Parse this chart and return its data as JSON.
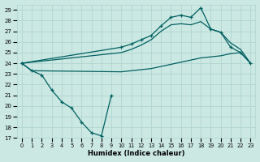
{
  "xlabel": "Humidex (Indice chaleur)",
  "bg_color": "#cbe8e3",
  "grid_color": "#b0d4cf",
  "line_color": "#006060",
  "xlim": [
    -0.5,
    23.5
  ],
  "ylim": [
    17,
    29.5
  ],
  "xticks": [
    0,
    1,
    2,
    3,
    4,
    5,
    6,
    7,
    8,
    9,
    10,
    11,
    12,
    13,
    14,
    15,
    16,
    17,
    18,
    19,
    20,
    21,
    22,
    23
  ],
  "yticks": [
    17,
    18,
    19,
    20,
    21,
    22,
    23,
    24,
    25,
    26,
    27,
    28,
    29
  ],
  "line1_x": [
    0,
    1,
    2,
    3,
    4,
    5,
    6,
    7,
    8,
    9
  ],
  "line1_y": [
    24.0,
    23.3,
    22.9,
    21.5,
    20.4,
    19.8,
    18.5,
    17.5,
    17.2,
    21.0
  ],
  "line2_x": [
    0,
    1,
    10,
    11,
    12,
    13,
    14,
    15,
    16,
    17,
    18,
    19,
    20,
    21,
    22,
    23
  ],
  "line2_y": [
    24.0,
    23.3,
    23.2,
    23.3,
    23.4,
    23.5,
    23.7,
    23.9,
    24.1,
    24.3,
    24.5,
    24.6,
    24.7,
    24.9,
    25.0,
    24.0
  ],
  "line3_x": [
    0,
    10,
    11,
    12,
    13,
    14,
    15,
    16,
    17,
    18,
    19,
    20,
    21,
    22,
    23
  ],
  "line3_y": [
    24.0,
    25.5,
    25.8,
    26.2,
    26.6,
    27.5,
    28.3,
    28.5,
    28.3,
    29.2,
    27.2,
    26.9,
    25.5,
    25.0,
    24.0
  ],
  "line4_x": [
    0,
    10,
    11,
    12,
    13,
    14,
    15,
    16,
    17,
    18,
    19,
    20,
    21,
    22,
    23
  ],
  "line4_y": [
    24.0,
    25.0,
    25.3,
    25.7,
    26.2,
    27.0,
    27.6,
    27.7,
    27.6,
    27.9,
    27.2,
    26.9,
    25.9,
    25.3,
    24.0
  ]
}
